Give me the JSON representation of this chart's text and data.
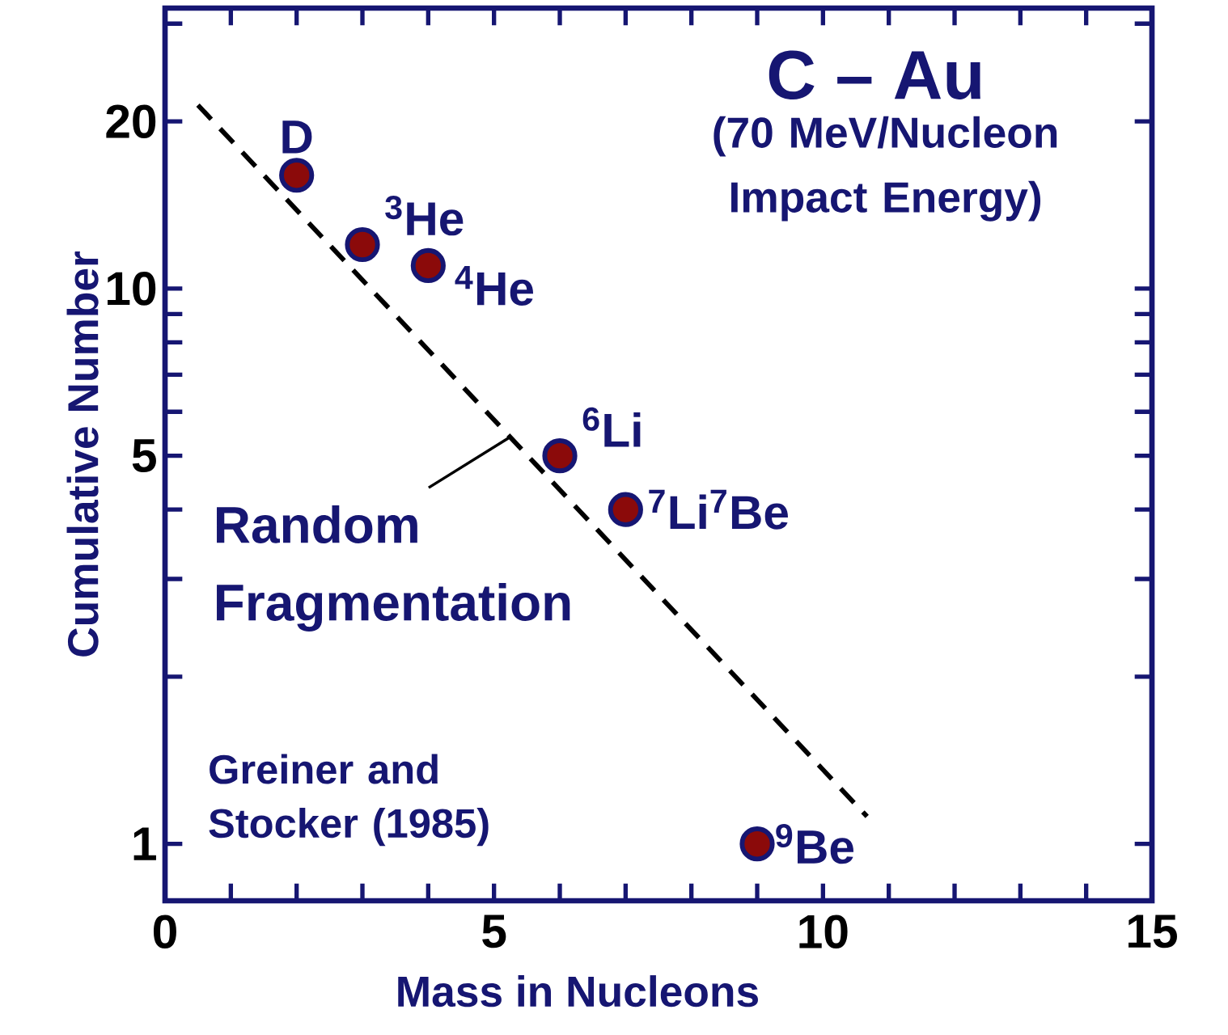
{
  "chart_data": {
    "type": "scatter",
    "title": "C – Au",
    "subtitle": "(70 MeV/Nucleon Impact Energy)",
    "xlabel": "Mass in Nucleons",
    "ylabel": "Cumulative Number",
    "log": "y",
    "xlim": [
      0,
      15
    ],
    "ylim": [
      0.79,
      32
    ],
    "xticks": [
      0,
      {
        "value": 1,
        "label": null
      },
      {
        "value": 2,
        "label": null
      },
      {
        "value": 3,
        "label": null
      },
      {
        "value": 4,
        "label": null
      },
      5,
      {
        "value": 6,
        "label": null
      },
      {
        "value": 7,
        "label": null
      },
      {
        "value": 8,
        "label": null
      },
      {
        "value": 9,
        "label": null
      },
      10,
      {
        "value": 11,
        "label": null
      },
      {
        "value": 12,
        "label": null
      },
      {
        "value": 13,
        "label": null
      },
      {
        "value": 14,
        "label": null
      },
      15
    ],
    "yticks": [
      1,
      {
        "value": 2,
        "label": null
      },
      {
        "value": 3,
        "label": null
      },
      {
        "value": 4,
        "label": null
      },
      5,
      {
        "value": 6,
        "label": null
      },
      {
        "value": 7,
        "label": null
      },
      {
        "value": 8,
        "label": null
      },
      {
        "value": 9,
        "label": null
      },
      10,
      20,
      {
        "value": 30,
        "label": null
      }
    ],
    "series": [
      {
        "color": "#8b0a0a",
        "marker": "circle",
        "x": [
          2,
          3,
          4,
          6,
          7,
          9
        ],
        "values": [
          16,
          12,
          11,
          5,
          4,
          1
        ]
      },
      {
        "type": "line",
        "color": "#000000",
        "line_style": "dashed",
        "marker": "none",
        "x": [
          0.5,
          10.67
        ],
        "values": [
          21.4,
          1.12
        ]
      }
    ],
    "annotations": [
      {
        "text": "D",
        "x": 2,
        "y": 16
      },
      {
        "text": "$^{3}$He",
        "x": 3,
        "y": 12
      },
      {
        "text": "$^{4}$He",
        "x": 4,
        "y": 11
      },
      {
        "text": "$^{6}$Li",
        "x": 6,
        "y": 5
      },
      {
        "text": "$^{7}$Li$^{7}$Be",
        "x": 7,
        "y": 4
      },
      {
        "text": "$^{9}$Be",
        "x": 9,
        "y": 1
      },
      {
        "text": "Random Fragmentation",
        "x": 5.22,
        "y": 5.38
      },
      "Greiner and Stocker (1985)"
    ]
  }
}
